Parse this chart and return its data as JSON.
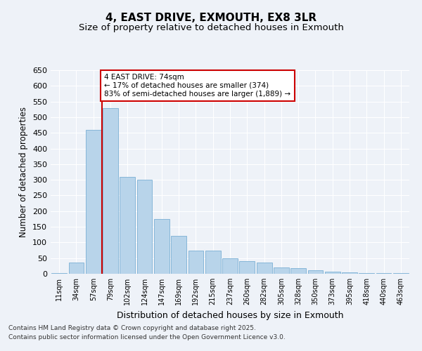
{
  "title": "4, EAST DRIVE, EXMOUTH, EX8 3LR",
  "subtitle": "Size of property relative to detached houses in Exmouth",
  "xlabel": "Distribution of detached houses by size in Exmouth",
  "ylabel": "Number of detached properties",
  "bar_labels": [
    "11sqm",
    "34sqm",
    "57sqm",
    "79sqm",
    "102sqm",
    "124sqm",
    "147sqm",
    "169sqm",
    "192sqm",
    "215sqm",
    "237sqm",
    "260sqm",
    "282sqm",
    "305sqm",
    "328sqm",
    "350sqm",
    "373sqm",
    "395sqm",
    "418sqm",
    "440sqm",
    "463sqm"
  ],
  "bar_values": [
    2,
    35,
    460,
    530,
    310,
    300,
    175,
    120,
    75,
    75,
    50,
    40,
    35,
    20,
    18,
    12,
    7,
    5,
    3,
    2,
    2
  ],
  "bar_color": "#b8d4ea",
  "bar_edge_color": "#7aafd4",
  "ylim": [
    0,
    650
  ],
  "yticks": [
    0,
    50,
    100,
    150,
    200,
    250,
    300,
    350,
    400,
    450,
    500,
    550,
    600,
    650
  ],
  "vline_x": 2.5,
  "vline_color": "#cc0000",
  "annotation_text": "4 EAST DRIVE: 74sqm\n← 17% of detached houses are smaller (374)\n83% of semi-detached houses are larger (1,889) →",
  "annotation_box_color": "#cc0000",
  "footer_text": "Contains HM Land Registry data © Crown copyright and database right 2025.\nContains public sector information licensed under the Open Government Licence v3.0.",
  "bg_color": "#eef2f8",
  "plot_bg_color": "#eef2f8",
  "grid_color": "#ffffff",
  "title_fontsize": 11,
  "subtitle_fontsize": 9.5,
  "tick_fontsize": 7,
  "ylabel_fontsize": 8.5,
  "xlabel_fontsize": 9
}
